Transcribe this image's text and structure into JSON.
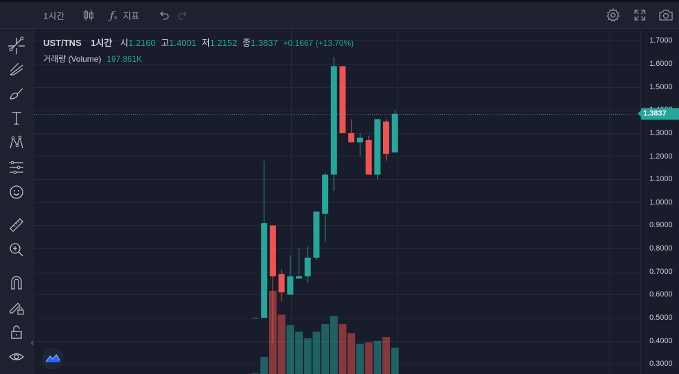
{
  "toolbar": {
    "interval": "1시간",
    "indicators_label": "지표",
    "icons": [
      "candles-icon",
      "fx-icon",
      "undo-icon",
      "redo-icon",
      "gear-icon",
      "fullscreen-icon",
      "camera-icon"
    ]
  },
  "sidebar": {
    "tools": [
      "crosshair-icon",
      "trend-line-icon",
      "pitchfork-icon",
      "brush-icon",
      "text-icon",
      "pattern-icon",
      "forecast-icon",
      "emoji-icon",
      "ruler-icon",
      "zoom-in-icon",
      "magnet-icon",
      "pencil-lock-icon",
      "lock-icon",
      "eye-icon"
    ],
    "collapse_glyph": "‹"
  },
  "legend": {
    "symbol": "UST/TNS",
    "interval": "1시간",
    "open_label": "시",
    "open": "1.2160",
    "high_label": "고",
    "high": "1.4001",
    "low_label": "저",
    "low": "1.2152",
    "close_label": "종",
    "close": "1.3837",
    "change": "+0.1667 (+13.70%)",
    "volume_label": "거래량 (Volume)",
    "volume": "197.861K"
  },
  "colors": {
    "up": "#26a69a",
    "down": "#ef5350",
    "background": "#181c2b",
    "grid": "#262b3b"
  },
  "chart_data": {
    "type": "candlestick",
    "y_axis_ticks": [
      "1.7000",
      "1.6000",
      "1.5000",
      "1.4000",
      "1.3000",
      "1.2000",
      "1.1000",
      "1.0000",
      "0.9000",
      "0.8000",
      "0.7000",
      "0.6000",
      "0.5000",
      "0.4000",
      "0.3000"
    ],
    "ylim": [
      0.28,
      1.74
    ],
    "last_price": "1.3837",
    "last_price_value": 1.3837,
    "candles": [
      {
        "o": 0.5,
        "h": 0.5,
        "l": 0.5,
        "c": 0.5,
        "v": 0.0
      },
      {
        "o": 0.5,
        "h": 1.18,
        "l": 0.5,
        "c": 0.91,
        "v": 0.13
      },
      {
        "o": 0.9,
        "h": 0.9,
        "l": 0.39,
        "c": 0.68,
        "v": 0.63
      },
      {
        "o": 0.69,
        "h": 0.71,
        "l": 0.57,
        "c": 0.61,
        "v": 0.45
      },
      {
        "o": 0.6,
        "h": 0.77,
        "l": 0.6,
        "c": 0.68,
        "v": 0.37
      },
      {
        "o": 0.67,
        "h": 0.8,
        "l": 0.67,
        "c": 0.68,
        "v": 0.32
      },
      {
        "o": 0.68,
        "h": 0.81,
        "l": 0.65,
        "c": 0.76,
        "v": 0.27
      },
      {
        "o": 0.76,
        "h": 0.96,
        "l": 0.75,
        "c": 0.96,
        "v": 0.32
      },
      {
        "o": 0.95,
        "h": 1.13,
        "l": 0.83,
        "c": 1.12,
        "v": 0.38
      },
      {
        "o": 1.12,
        "h": 1.63,
        "l": 1.05,
        "c": 1.59,
        "v": 0.44
      },
      {
        "o": 1.59,
        "h": 1.59,
        "l": 1.3,
        "c": 1.3,
        "v": 0.38
      },
      {
        "o": 1.3,
        "h": 1.36,
        "l": 1.27,
        "c": 1.26,
        "v": 0.31
      },
      {
        "o": 1.26,
        "h": 1.3,
        "l": 1.2,
        "c": 1.28,
        "v": 0.23
      },
      {
        "o": 1.27,
        "h": 1.29,
        "l": 1.12,
        "c": 1.12,
        "v": 0.24
      },
      {
        "o": 1.12,
        "h": 1.36,
        "l": 1.1,
        "c": 1.36,
        "v": 0.25
      },
      {
        "o": 1.35,
        "h": 1.36,
        "l": 1.18,
        "c": 1.21,
        "v": 0.28
      },
      {
        "o": 1.216,
        "h": 1.4001,
        "l": 1.2152,
        "c": 1.3837,
        "v": 0.2
      }
    ]
  }
}
